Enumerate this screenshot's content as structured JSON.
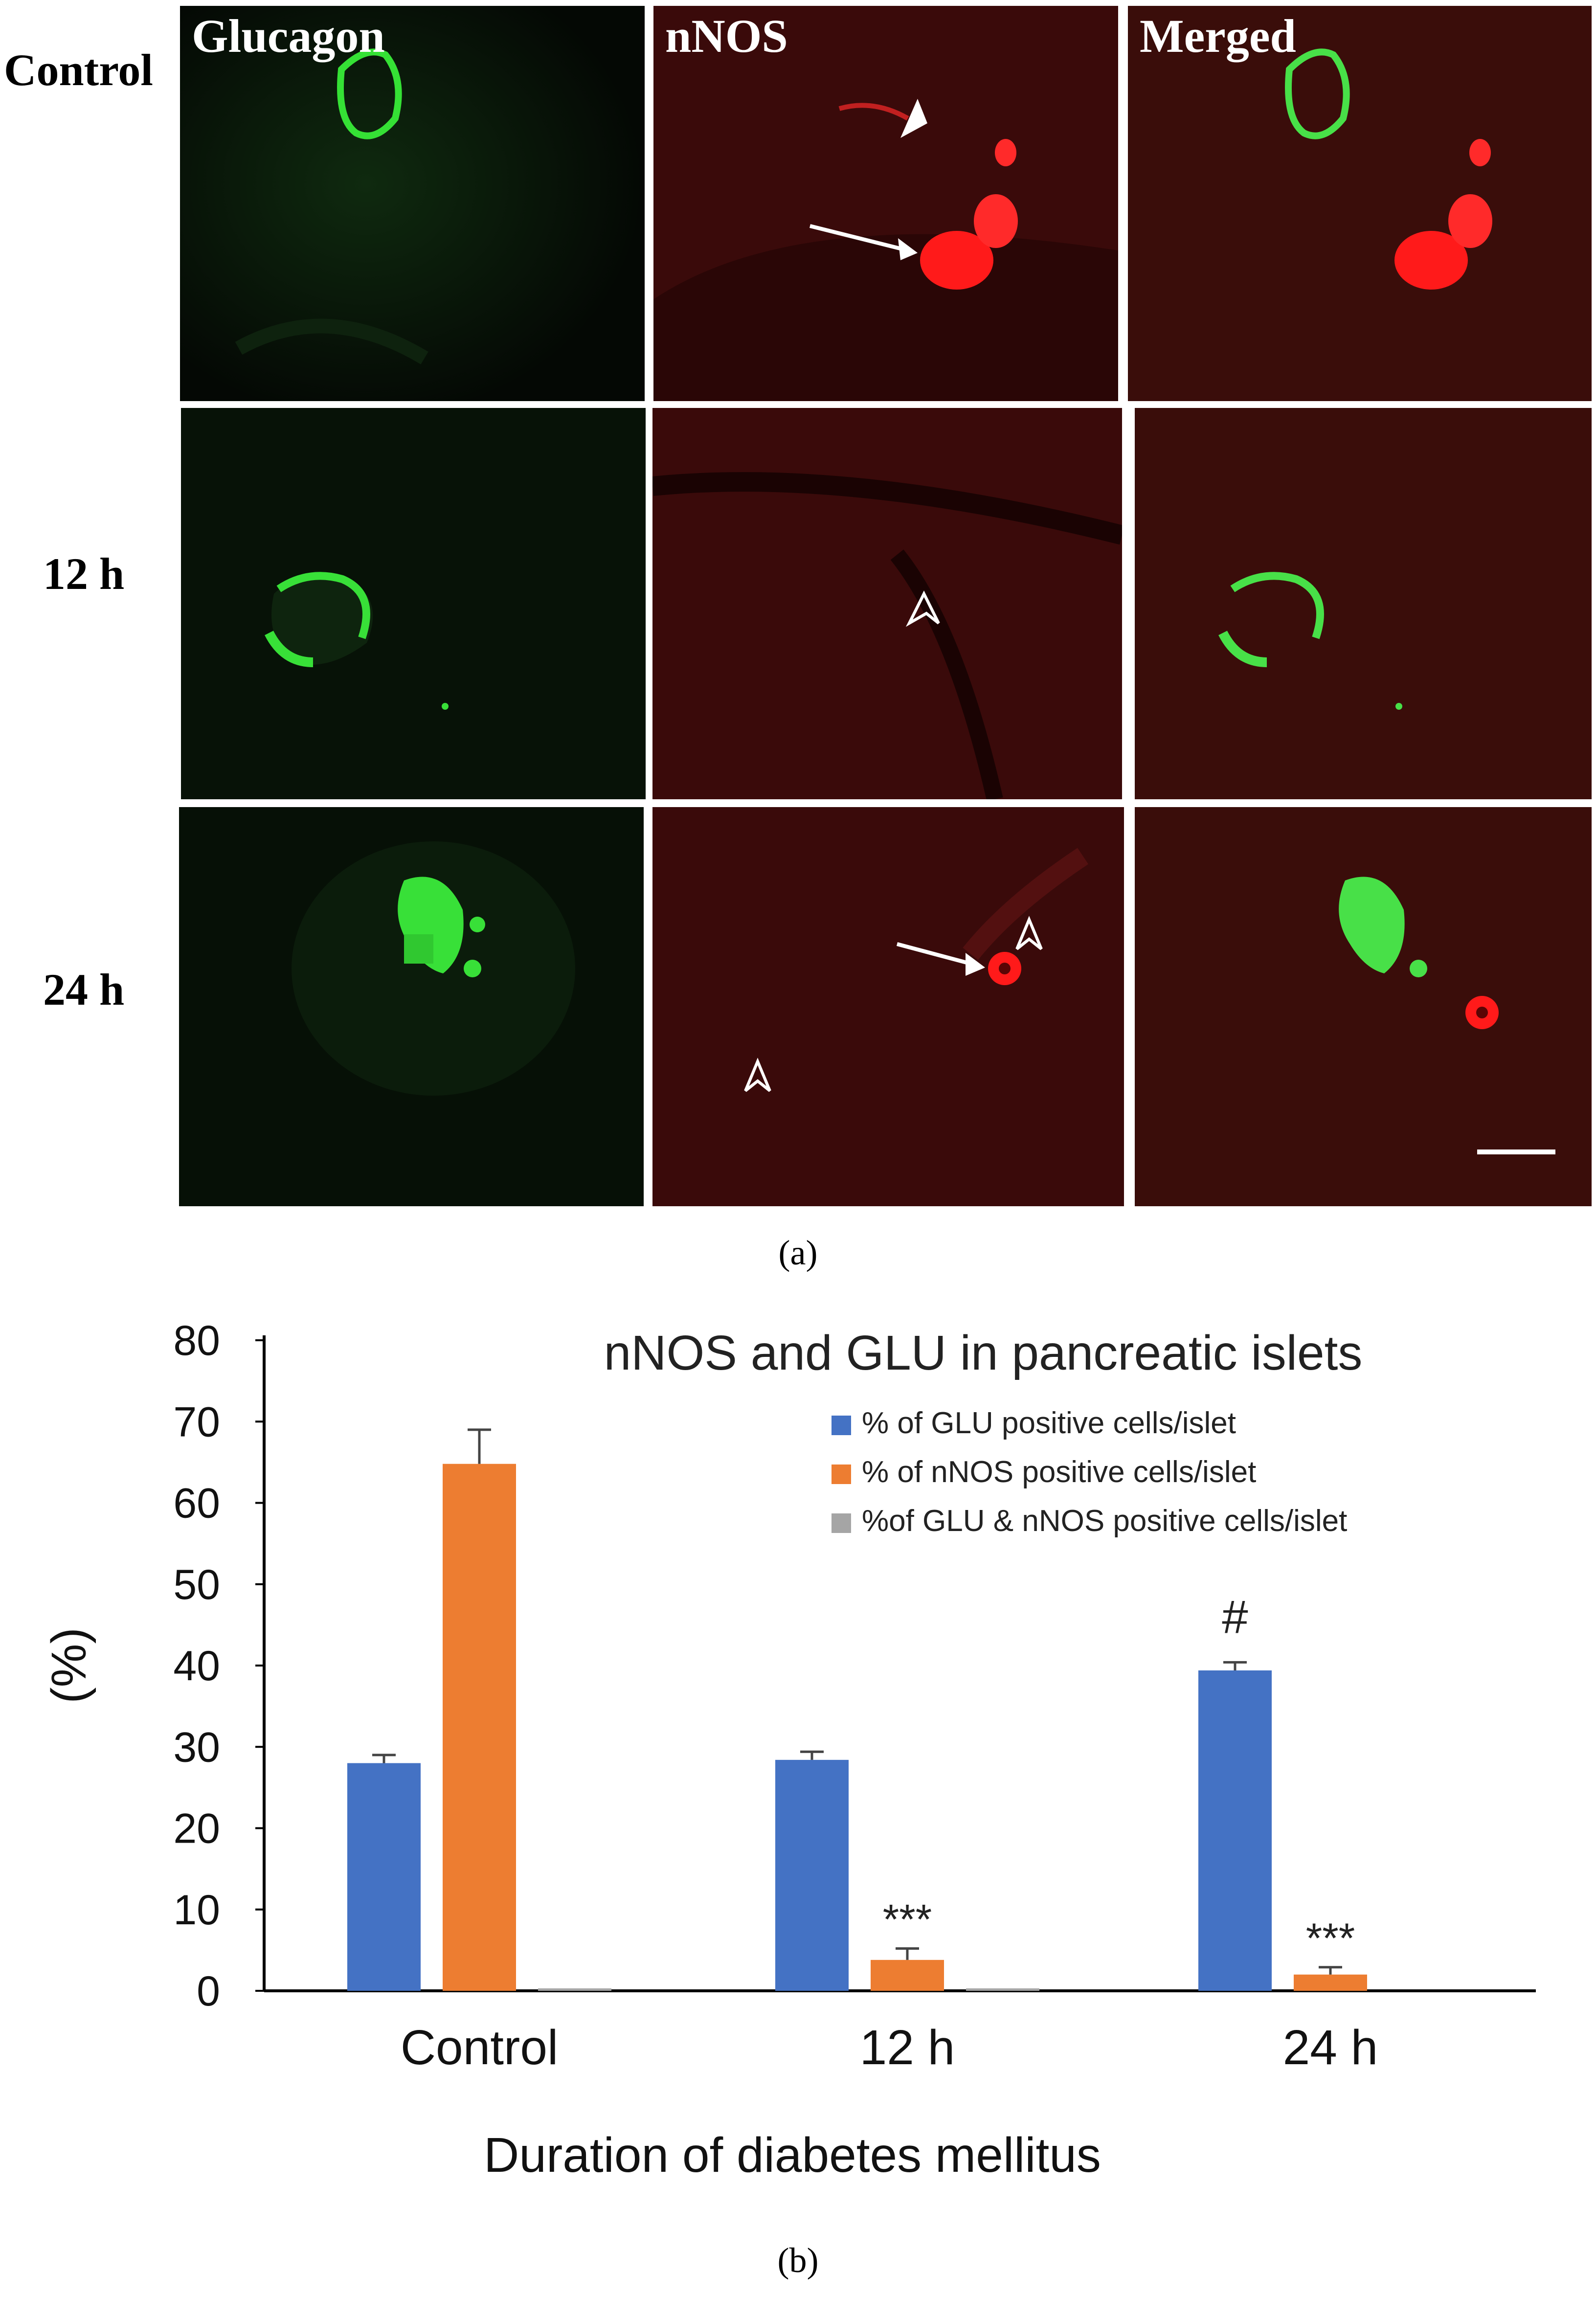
{
  "panel_a": {
    "column_titles": [
      "Glucagon",
      "nNOS",
      "Merged"
    ],
    "row_labels": [
      "Control",
      "12 h",
      "24 h"
    ],
    "caption": "(a)"
  },
  "panel_b": {
    "caption": "(b)"
  },
  "colors": {
    "glu": "#4472c4",
    "nnos": "#ed7d31",
    "both": "#a5a5a5",
    "fluor_green": "#35e135",
    "fluor_red": "#ff2a2a"
  },
  "chart_data": {
    "type": "bar",
    "title": "nNOS and GLU in pancreatic islets",
    "xlabel": "Duration of diabetes mellitus",
    "ylabel": "(%)",
    "categories": [
      "Control",
      "12 h",
      "24 h"
    ],
    "ylim": [
      0,
      80
    ],
    "yticks": [
      0,
      10,
      20,
      30,
      40,
      50,
      60,
      70,
      80
    ],
    "grid": false,
    "legend_position": "top-right",
    "series": [
      {
        "name": "% of GLU positive cells/islet",
        "values": [
          28,
          28.4,
          39.4
        ],
        "errors": [
          1.0,
          1.0,
          1.0
        ]
      },
      {
        "name": "% of nNOS positive cells/islet",
        "values": [
          64.8,
          3.8,
          2.0
        ],
        "errors": [
          4.2,
          1.4,
          0.9
        ]
      },
      {
        "name": "%of GLU & nNOS positive cells/islet",
        "values": [
          0.3,
          0.3,
          0
        ],
        "errors": [
          0,
          0,
          0
        ]
      }
    ],
    "annotations": [
      {
        "category": "12 h",
        "series": 1,
        "text": "***"
      },
      {
        "category": "24 h",
        "series": 0,
        "text": "#"
      },
      {
        "category": "24 h",
        "series": 1,
        "text": "***"
      }
    ]
  }
}
